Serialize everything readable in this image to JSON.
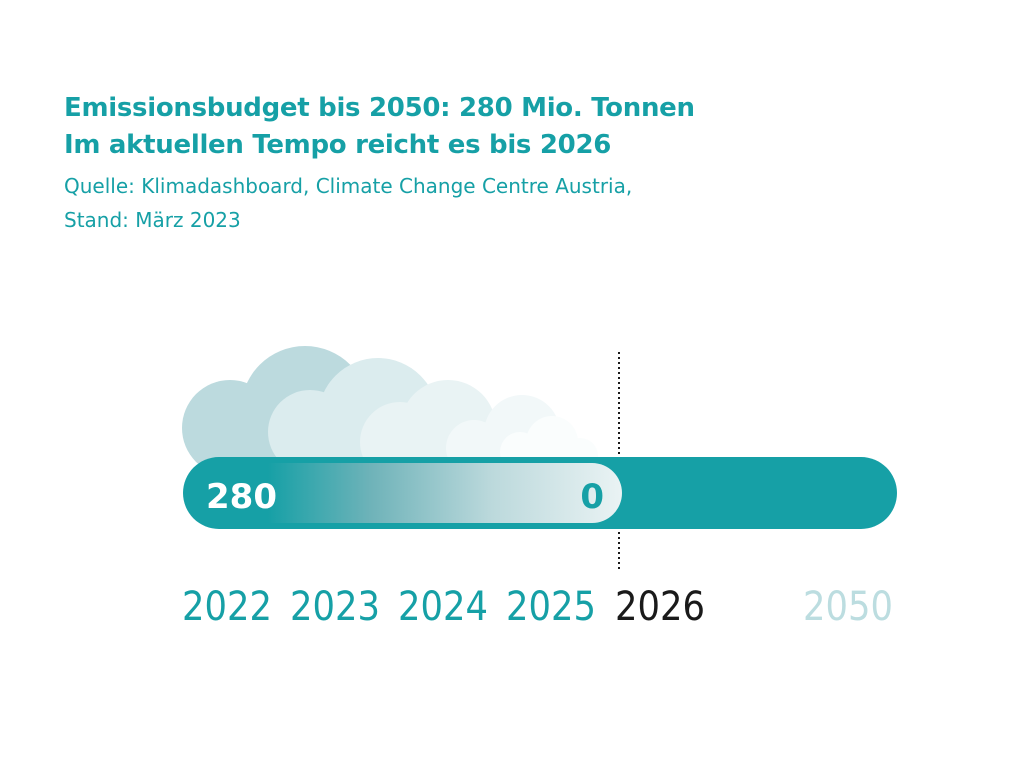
{
  "header": {
    "title_line1": "Emissionsbudget bis 2050: 280 Mio. Tonnen",
    "title_line2": "Im aktuellen Tempo reicht es bis 2026",
    "source_line1": "Quelle: Klimadashboard, Climate Change Centre Austria,",
    "source_line2": "Stand: März 2023"
  },
  "chart_data": {
    "type": "bar",
    "budget_start_label": "280",
    "budget_end_label": "0",
    "budget_start_value": 280,
    "budget_end_value": 0,
    "unit": "Mio. Tonnen",
    "years": [
      "2022",
      "2023",
      "2024",
      "2025",
      "2026",
      "2050"
    ],
    "exhausted_year": "2026",
    "target_year": "2050",
    "colors": {
      "accent": "#16a0a6",
      "exhausted_year": "#1a1a1a",
      "target_year": "#bcdde0",
      "cloud_1": "#bcdade",
      "cloud_2": "#dbecee",
      "cloud_3": "#e9f3f4",
      "cloud_4": "#f2f8f9",
      "cloud_5": "#fafdfd"
    }
  }
}
